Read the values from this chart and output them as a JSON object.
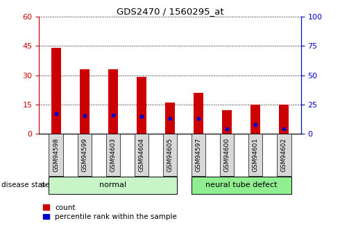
{
  "title": "GDS2470 / 1560295_at",
  "samples": [
    "GSM94598",
    "GSM94599",
    "GSM94603",
    "GSM94604",
    "GSM94605",
    "GSM94597",
    "GSM94600",
    "GSM94601",
    "GSM94602"
  ],
  "count_values": [
    44,
    33,
    33,
    29,
    16,
    21,
    12,
    15,
    15
  ],
  "percentile_values": [
    17,
    15.5,
    16,
    15,
    13,
    13,
    4,
    8,
    4
  ],
  "groups": [
    {
      "label": "normal",
      "indices": [
        0,
        4
      ],
      "color": "#c8f5c8"
    },
    {
      "label": "neural tube defect",
      "indices": [
        5,
        8
      ],
      "color": "#90ee90"
    }
  ],
  "left_yticks": [
    0,
    15,
    30,
    45,
    60
  ],
  "right_yticks": [
    0,
    25,
    50,
    75,
    100
  ],
  "left_ylim": [
    0,
    60
  ],
  "right_ylim": [
    0,
    100
  ],
  "left_axis_color": "#cc0000",
  "right_axis_color": "#0000cc",
  "bar_color": "#cc0000",
  "blue_marker_color": "#0000cc",
  "bar_width": 0.35,
  "background_color": "#ffffff",
  "tick_bg_color": "#d8d8d8"
}
